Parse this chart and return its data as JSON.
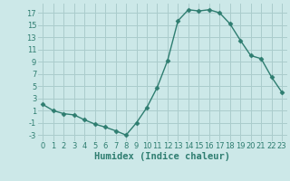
{
  "x": [
    0,
    1,
    2,
    3,
    4,
    5,
    6,
    7,
    8,
    9,
    10,
    11,
    12,
    13,
    14,
    15,
    16,
    17,
    18,
    19,
    20,
    21,
    22,
    23
  ],
  "y": [
    2,
    1,
    0.5,
    0.3,
    -0.5,
    -1.2,
    -1.7,
    -2.3,
    -3.0,
    -1.0,
    1.5,
    4.8,
    9.2,
    15.7,
    17.5,
    17.3,
    17.5,
    17.0,
    15.2,
    12.5,
    10.0,
    9.5,
    6.5,
    4.0
  ],
  "line_color": "#2e7d70",
  "marker": "D",
  "markersize": 2.5,
  "bg_color": "#cce8e8",
  "grid_color": "#aacccc",
  "xlabel": "Humidex (Indice chaleur)",
  "xlim": [
    -0.5,
    23.5
  ],
  "ylim": [
    -4,
    18.5
  ],
  "yticks": [
    -3,
    -1,
    1,
    3,
    5,
    7,
    9,
    11,
    13,
    15,
    17
  ],
  "xticks": [
    0,
    1,
    2,
    3,
    4,
    5,
    6,
    7,
    8,
    9,
    10,
    11,
    12,
    13,
    14,
    15,
    16,
    17,
    18,
    19,
    20,
    21,
    22,
    23
  ],
  "tick_labelsize": 6,
  "xlabel_fontsize": 7.5
}
